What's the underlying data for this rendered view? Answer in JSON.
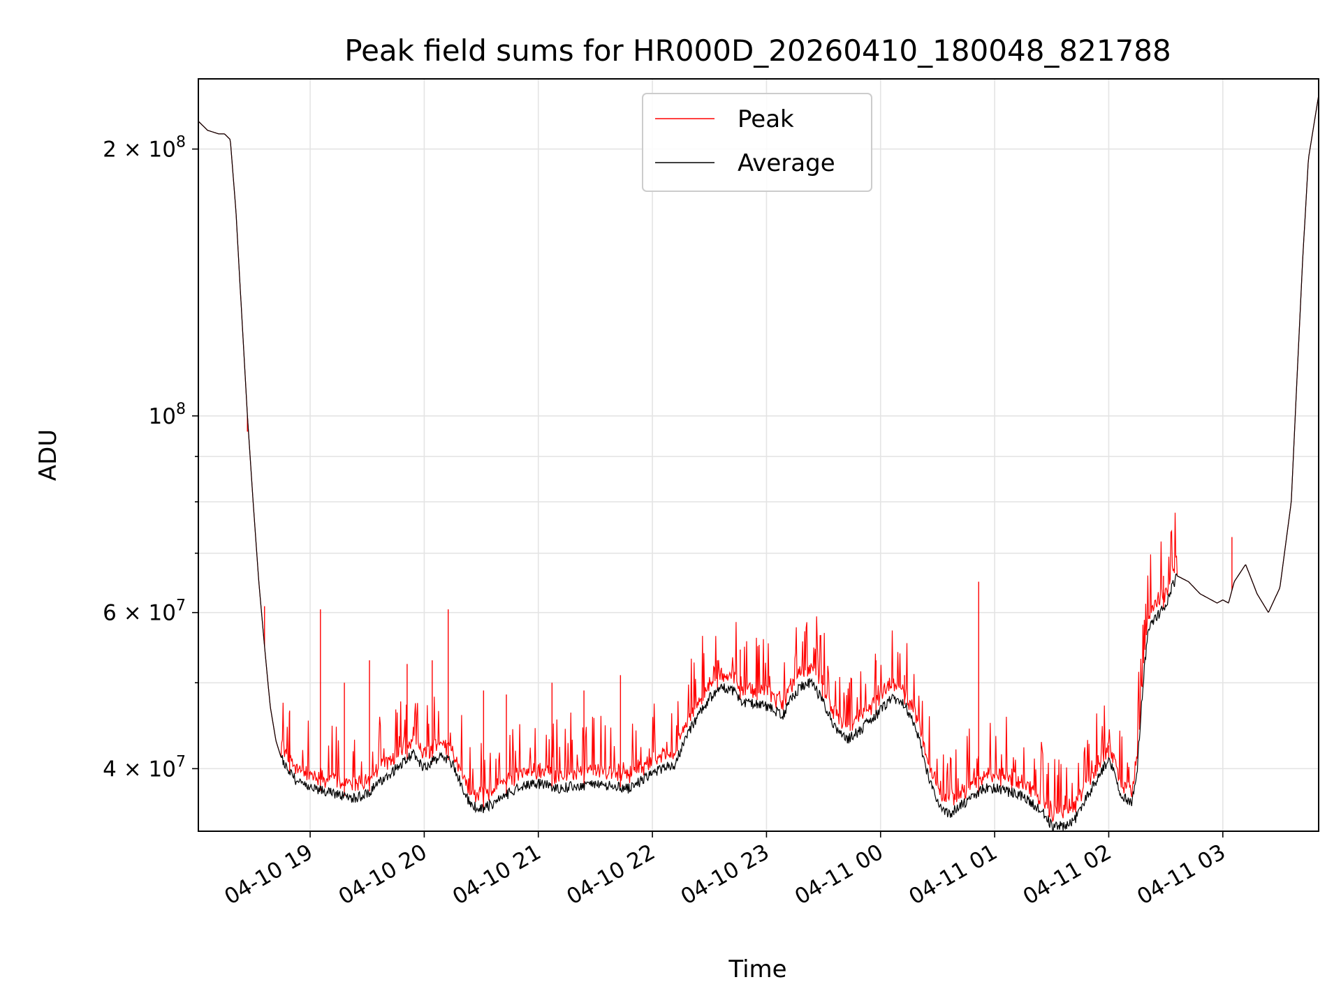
{
  "chart_data": {
    "type": "line",
    "title": "Peak field sums for HR000D_20260410_180048_821788",
    "xlabel": "Time",
    "ylabel": "ADU",
    "yscale": "log",
    "ylim": [
      34000000,
      240000000
    ],
    "xlim": [
      18.02,
      27.84
    ],
    "grid": true,
    "legend_position": "top-center",
    "x_ticks": [
      {
        "value": 19,
        "label": "04-10 19"
      },
      {
        "value": 20,
        "label": "04-10 20"
      },
      {
        "value": 21,
        "label": "04-10 21"
      },
      {
        "value": 22,
        "label": "04-10 22"
      },
      {
        "value": 23,
        "label": "04-10 23"
      },
      {
        "value": 24,
        "label": "04-11 00"
      },
      {
        "value": 25,
        "label": "04-11 01"
      },
      {
        "value": 26,
        "label": "04-11 02"
      },
      {
        "value": 27,
        "label": "04-11 03"
      }
    ],
    "y_ticks": [
      {
        "value": 40000000,
        "base": "4 × 10",
        "exp": "7"
      },
      {
        "value": 60000000,
        "base": "6 × 10",
        "exp": "7"
      },
      {
        "value": 100000000,
        "base": "10",
        "exp": "8"
      },
      {
        "value": 200000000,
        "base": "2 × 10",
        "exp": "8"
      }
    ],
    "y_minor_ticks": [
      50000000,
      70000000,
      80000000,
      90000000
    ],
    "series": [
      {
        "name": "Average",
        "color": "#000000",
        "x": [
          18.02,
          18.1,
          18.2,
          18.25,
          18.3,
          18.35,
          18.4,
          18.45,
          18.5,
          18.55,
          18.6,
          18.65,
          18.7,
          18.75,
          18.8,
          18.9,
          19.0,
          19.2,
          19.4,
          19.5,
          19.6,
          19.8,
          19.9,
          20.0,
          20.15,
          20.25,
          20.4,
          20.5,
          20.6,
          20.8,
          21.0,
          21.2,
          21.5,
          21.8,
          22.0,
          22.2,
          22.3,
          22.4,
          22.5,
          22.6,
          22.7,
          22.8,
          23.0,
          23.15,
          23.2,
          23.3,
          23.4,
          23.5,
          23.6,
          23.7,
          23.8,
          24.0,
          24.1,
          24.2,
          24.3,
          24.4,
          24.5,
          24.6,
          24.65,
          24.8,
          24.9,
          25.0,
          25.2,
          25.4,
          25.5,
          25.6,
          25.7,
          25.8,
          25.9,
          26.0,
          26.05,
          26.1,
          26.2,
          26.25,
          26.3,
          26.35,
          26.4,
          26.5,
          26.55,
          26.6,
          26.7,
          26.8,
          26.9,
          26.95,
          27.0,
          27.05,
          27.1,
          27.2,
          27.3,
          27.4,
          27.5,
          27.6,
          27.65,
          27.7,
          27.75,
          27.84
        ],
        "values": [
          215000000,
          210000000,
          208000000,
          208000000,
          205000000,
          170000000,
          130000000,
          100000000,
          80000000,
          65000000,
          55000000,
          47000000,
          43000000,
          41000000,
          40000000,
          38500000,
          38000000,
          37500000,
          37000000,
          37500000,
          38500000,
          40500000,
          41500000,
          40000000,
          41500000,
          40500000,
          36500000,
          36000000,
          36500000,
          38000000,
          38500000,
          38000000,
          38500000,
          38000000,
          39500000,
          40500000,
          43500000,
          46000000,
          48000000,
          49500000,
          49000000,
          47500000,
          47000000,
          46000000,
          47500000,
          49500000,
          50000000,
          47500000,
          44500000,
          43000000,
          44000000,
          46500000,
          48000000,
          47500000,
          45000000,
          40000000,
          36500000,
          35500000,
          36000000,
          37000000,
          38000000,
          38000000,
          37500000,
          36000000,
          34500000,
          34500000,
          35000000,
          37000000,
          39000000,
          41000000,
          39500000,
          37500000,
          36500000,
          40000000,
          50000000,
          58000000,
          59000000,
          61000000,
          64000000,
          66000000,
          65000000,
          63000000,
          62000000,
          61500000,
          62000000,
          61500000,
          65000000,
          68000000,
          63000000,
          60000000,
          64000000,
          80000000,
          110000000,
          150000000,
          195000000,
          230000000
        ]
      },
      {
        "name": "Peak",
        "color": "#ff0000",
        "spikes": [
          {
            "x": 18.45,
            "value": 96000000
          },
          {
            "x": 18.6,
            "value": 61000000
          },
          {
            "x": 18.82,
            "value": 46500000
          },
          {
            "x": 19.09,
            "value": 60500000
          },
          {
            "x": 19.3,
            "value": 50000000
          },
          {
            "x": 19.52,
            "value": 53000000
          },
          {
            "x": 19.85,
            "value": 52500000
          },
          {
            "x": 20.07,
            "value": 53000000
          },
          {
            "x": 20.21,
            "value": 60500000
          },
          {
            "x": 20.52,
            "value": 49000000
          },
          {
            "x": 20.72,
            "value": 48500000
          },
          {
            "x": 21.12,
            "value": 50000000
          },
          {
            "x": 21.4,
            "value": 49000000
          },
          {
            "x": 21.72,
            "value": 51000000
          },
          {
            "x": 22.57,
            "value": 53000000
          },
          {
            "x": 22.77,
            "value": 54500000
          },
          {
            "x": 23.49,
            "value": 51000000
          },
          {
            "x": 23.96,
            "value": 53000000
          },
          {
            "x": 24.21,
            "value": 51000000
          },
          {
            "x": 24.86,
            "value": 65000000
          },
          {
            "x": 25.15,
            "value": 40000000
          },
          {
            "x": 26.0,
            "value": 42500000
          },
          {
            "x": 26.48,
            "value": 66000000
          },
          {
            "x": 27.08,
            "value": 73000000
          }
        ]
      }
    ]
  }
}
